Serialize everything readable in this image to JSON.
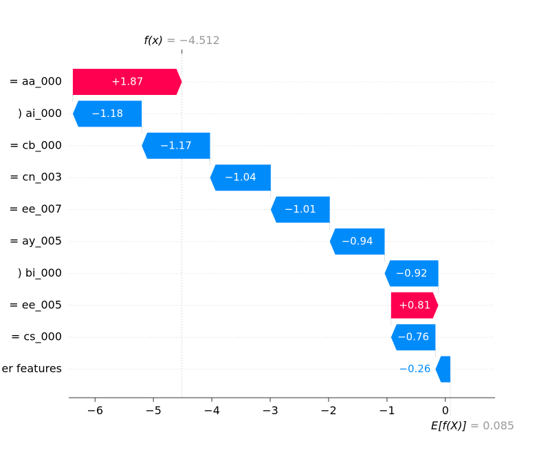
{
  "chart_data": {
    "type": "waterfall",
    "fx_label": "f(x)",
    "fx_eq": "= −4.512",
    "ex_label": "E[f(X)]",
    "ex_eq": "= 0.085",
    "base_value": 0.085,
    "final_value": -4.512,
    "xlim": [
      -6.45,
      0.85
    ],
    "xticks": [
      -6,
      -5,
      -4,
      -3,
      -2,
      -1,
      0
    ],
    "xtick_labels": [
      "−6",
      "−5",
      "−4",
      "−3",
      "−2",
      "−1",
      "0"
    ],
    "features": [
      {
        "label": "= aa_000",
        "start": -6.38,
        "end": -4.512,
        "label_text": "+1.87",
        "direction": "positive"
      },
      {
        "label": ") ai_000",
        "start": -5.2,
        "end": -6.38,
        "label_text": "−1.18",
        "direction": "negative"
      },
      {
        "label": "= cb_000",
        "start": -4.03,
        "end": -5.2,
        "label_text": "−1.17",
        "direction": "negative"
      },
      {
        "label": "= cn_003",
        "start": -2.99,
        "end": -4.03,
        "label_text": "−1.04",
        "direction": "negative"
      },
      {
        "label": "= ee_007",
        "start": -1.98,
        "end": -2.99,
        "label_text": "−1.01",
        "direction": "negative"
      },
      {
        "label": "= ay_005",
        "start": -1.04,
        "end": -1.98,
        "label_text": "−0.94",
        "direction": "negative"
      },
      {
        "label": ") bi_000",
        "start": -0.12,
        "end": -1.04,
        "label_text": "−0.92",
        "direction": "negative"
      },
      {
        "label": "= ee_005",
        "start": -0.93,
        "end": -0.12,
        "label_text": "+0.81",
        "direction": "positive"
      },
      {
        "label": "= cs_000",
        "start": -0.17,
        "end": -0.93,
        "label_text": "−0.76",
        "direction": "negative"
      },
      {
        "label": "er features",
        "start": 0.085,
        "end": -0.17,
        "label_text": "−0.26",
        "direction": "negative"
      }
    ],
    "colors": {
      "positive": "#ff0051",
      "negative": "#008bfb",
      "gray": "#999999",
      "axis": "#333333",
      "grid": "#cccccc"
    }
  }
}
